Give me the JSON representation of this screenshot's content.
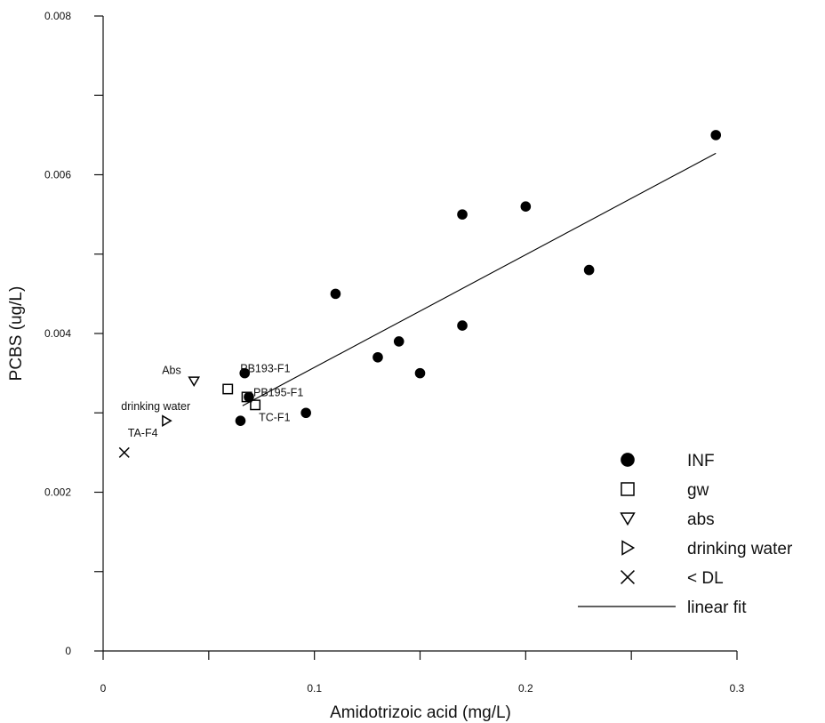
{
  "chart_data": {
    "type": "scatter",
    "xlabel": "Amidotrizoic acid (mg/L)",
    "ylabel": "PCBS (ug/L)",
    "xlim": [
      0,
      0.3
    ],
    "ylim": [
      0,
      0.008
    ],
    "x_ticks": [
      {
        "value": 0,
        "label": "0"
      },
      {
        "value": 0.1,
        "label": "0.1"
      },
      {
        "value": 0.2,
        "label": "0.2"
      },
      {
        "value": 0.3,
        "label": "0.3"
      }
    ],
    "y_ticks": [
      {
        "value": 0,
        "label": "0"
      },
      {
        "value": 0.002,
        "label": "0.002"
      },
      {
        "value": 0.004,
        "label": "0.004"
      },
      {
        "value": 0.006,
        "label": "0.006"
      },
      {
        "value": 0.008,
        "label": "0.008"
      }
    ],
    "grid": false,
    "legend_position": "bottom-right",
    "series": [
      {
        "name": "INF",
        "marker": "filled-circle",
        "points": [
          {
            "x": 0.065,
            "y": 0.0029
          },
          {
            "x": 0.067,
            "y": 0.0035
          },
          {
            "x": 0.069,
            "y": 0.0032
          },
          {
            "x": 0.096,
            "y": 0.003
          },
          {
            "x": 0.11,
            "y": 0.0045
          },
          {
            "x": 0.13,
            "y": 0.0037
          },
          {
            "x": 0.14,
            "y": 0.0039
          },
          {
            "x": 0.15,
            "y": 0.0035
          },
          {
            "x": 0.17,
            "y": 0.0055
          },
          {
            "x": 0.17,
            "y": 0.0041
          },
          {
            "x": 0.2,
            "y": 0.0056
          },
          {
            "x": 0.23,
            "y": 0.0048
          },
          {
            "x": 0.29,
            "y": 0.0065
          }
        ]
      },
      {
        "name": "gw",
        "marker": "open-square",
        "points": [
          {
            "x": 0.059,
            "y": 0.0033
          },
          {
            "x": 0.068,
            "y": 0.0032
          },
          {
            "x": 0.072,
            "y": 0.0031
          }
        ]
      },
      {
        "name": "abs",
        "marker": "open-triangle-down",
        "points": [
          {
            "x": 0.043,
            "y": 0.0034
          }
        ]
      },
      {
        "name": "drinking water",
        "marker": "open-triangle-right",
        "points": [
          {
            "x": 0.03,
            "y": 0.0029
          }
        ]
      },
      {
        "name": "< DL",
        "marker": "cross",
        "points": [
          {
            "x": 0.01,
            "y": 0.0025
          }
        ]
      }
    ],
    "linear_fit": {
      "name": "linear fit",
      "x": [
        0.066,
        0.29
      ],
      "y": [
        0.00309,
        0.00627
      ]
    },
    "annotations": [
      {
        "text": "Abs",
        "x": 0.043,
        "y": 0.0034
      },
      {
        "text": "PB193-F1",
        "x": 0.067,
        "y": 0.0035
      },
      {
        "text": "PB195-F1",
        "x": 0.069,
        "y": 0.0032
      },
      {
        "text": "TC-F1",
        "x": 0.072,
        "y": 0.0031
      },
      {
        "text": "drinking water",
        "x": 0.03,
        "y": 0.0029
      },
      {
        "text": "TA-F4",
        "x": 0.01,
        "y": 0.0025
      }
    ]
  }
}
